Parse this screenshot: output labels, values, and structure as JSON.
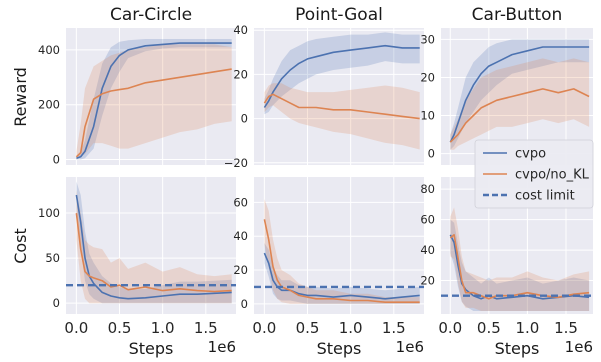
{
  "colors": {
    "cvpo": "#4c72b0",
    "no_kl": "#dd8452",
    "cost_limit": "#4c72b0",
    "panel_bg": "#eaeaf2",
    "grid": "#ffffff"
  },
  "row_labels": [
    "Reward",
    "Cost"
  ],
  "legend": {
    "placement": "right, between rows",
    "entries": [
      "cvpo",
      "cvpo/no_KL",
      "cost limit"
    ]
  },
  "chart_data": [
    {
      "type": "line",
      "title": "Car-Circle",
      "ylabel": "Reward",
      "xlabel": "",
      "x_sci": "",
      "x": [
        0,
        0.05,
        0.1,
        0.2,
        0.3,
        0.4,
        0.5,
        0.6,
        0.8,
        1.0,
        1.2,
        1.4,
        1.6,
        1.8
      ],
      "xlim": [
        -0.12,
        1.85
      ],
      "ylim": [
        -20,
        480
      ],
      "xticks": [],
      "yticks": [
        0,
        200,
        400
      ],
      "series": [
        {
          "name": "cvpo",
          "values": [
            5,
            10,
            30,
            120,
            260,
            340,
            380,
            400,
            415,
            420,
            425,
            425,
            425,
            425
          ],
          "band": [
            [
              0,
              10
            ],
            [
              0,
              30
            ],
            [
              5,
              70
            ],
            [
              40,
              220
            ],
            [
              160,
              350
            ],
            [
              260,
              410
            ],
            [
              320,
              430
            ],
            [
              370,
              435
            ],
            [
              395,
              440
            ],
            [
              405,
              440
            ],
            [
              410,
              440
            ],
            [
              410,
              440
            ],
            [
              410,
              440
            ],
            [
              410,
              440
            ]
          ]
        },
        {
          "name": "cvpo/no_KL",
          "values": [
            10,
            25,
            120,
            220,
            240,
            250,
            255,
            260,
            280,
            290,
            300,
            310,
            320,
            330
          ],
          "band": [
            [
              0,
              30
            ],
            [
              10,
              130
            ],
            [
              20,
              260
            ],
            [
              60,
              340
            ],
            [
              60,
              360
            ],
            [
              50,
              380
            ],
            [
              40,
              390
            ],
            [
              40,
              400
            ],
            [
              60,
              410
            ],
            [
              80,
              420
            ],
            [
              100,
              420
            ],
            [
              110,
              420
            ],
            [
              130,
              420
            ],
            [
              140,
              410
            ]
          ]
        }
      ]
    },
    {
      "type": "line",
      "title": "Point-Goal",
      "ylabel": "",
      "xlabel": "",
      "x_sci": "",
      "x": [
        0,
        0.05,
        0.1,
        0.2,
        0.3,
        0.4,
        0.5,
        0.6,
        0.8,
        1.0,
        1.2,
        1.4,
        1.6,
        1.8
      ],
      "xlim": [
        -0.12,
        1.85
      ],
      "ylim": [
        -21,
        41
      ],
      "xticks": [],
      "yticks": [
        -20,
        0,
        20,
        40
      ],
      "series": [
        {
          "name": "cvpo",
          "values": [
            5,
            8,
            12,
            18,
            22,
            25,
            27,
            28,
            30,
            31,
            32,
            33,
            32,
            32
          ],
          "band": [
            [
              2,
              9
            ],
            [
              3,
              13
            ],
            [
              6,
              18
            ],
            [
              10,
              26
            ],
            [
              13,
              31
            ],
            [
              16,
              33
            ],
            [
              18,
              35
            ],
            [
              20,
              36
            ],
            [
              22,
              37
            ],
            [
              23,
              38
            ],
            [
              24,
              38
            ],
            [
              26,
              39
            ],
            [
              25,
              38
            ],
            [
              25,
              38
            ]
          ]
        },
        {
          "name": "cvpo/no_KL",
          "values": [
            7,
            10,
            11,
            9,
            7,
            5,
            5,
            5,
            4,
            4,
            3,
            2,
            1,
            0
          ],
          "band": [
            [
              3,
              12
            ],
            [
              5,
              15
            ],
            [
              6,
              16
            ],
            [
              3,
              16
            ],
            [
              0,
              14
            ],
            [
              -2,
              13
            ],
            [
              -3,
              12
            ],
            [
              -4,
              12
            ],
            [
              -6,
              12
            ],
            [
              -7,
              13
            ],
            [
              -9,
              14
            ],
            [
              -11,
              15
            ],
            [
              -12,
              14
            ],
            [
              -14,
              12
            ]
          ]
        }
      ]
    },
    {
      "type": "line",
      "title": "Car-Button",
      "ylabel": "",
      "xlabel": "",
      "x_sci": "",
      "x": [
        0,
        0.05,
        0.1,
        0.2,
        0.3,
        0.4,
        0.5,
        0.6,
        0.8,
        1.0,
        1.2,
        1.4,
        1.6,
        1.8
      ],
      "xlim": [
        -0.12,
        1.85
      ],
      "ylim": [
        -3,
        33
      ],
      "xticks": [],
      "yticks": [
        0,
        10,
        20,
        30
      ],
      "series": [
        {
          "name": "cvpo",
          "values": [
            3,
            5,
            8,
            14,
            18,
            21,
            23,
            24,
            26,
            27,
            28,
            28,
            28,
            28
          ],
          "band": [
            [
              1,
              5
            ],
            [
              2,
              8
            ],
            [
              4,
              12
            ],
            [
              8,
              20
            ],
            [
              11,
              24
            ],
            [
              14,
              26
            ],
            [
              16,
              28
            ],
            [
              18,
              29
            ],
            [
              21,
              30
            ],
            [
              22,
              30
            ],
            [
              23,
              30
            ],
            [
              24,
              30
            ],
            [
              24,
              30
            ],
            [
              24,
              30
            ]
          ]
        },
        {
          "name": "cvpo/no_KL",
          "values": [
            3,
            4,
            5,
            8,
            10,
            12,
            13,
            14,
            15,
            16,
            17,
            16,
            17,
            15
          ],
          "band": [
            [
              1,
              5
            ],
            [
              1,
              7
            ],
            [
              2,
              9
            ],
            [
              3,
              14
            ],
            [
              4,
              17
            ],
            [
              5,
              20
            ],
            [
              6,
              21
            ],
            [
              7,
              22
            ],
            [
              7,
              23
            ],
            [
              8,
              24
            ],
            [
              9,
              25
            ],
            [
              8,
              24
            ],
            [
              9,
              25
            ],
            [
              7,
              24
            ]
          ]
        }
      ]
    },
    {
      "type": "line",
      "title": "",
      "ylabel": "Cost",
      "xlabel": "Steps",
      "x_sci": "1e6",
      "x": [
        0,
        0.05,
        0.1,
        0.15,
        0.2,
        0.3,
        0.4,
        0.5,
        0.6,
        0.8,
        1.0,
        1.2,
        1.4,
        1.6,
        1.8
      ],
      "xlim": [
        -0.12,
        1.85
      ],
      "ylim": [
        -12,
        140
      ],
      "xticks": [
        "0.0",
        "0.5",
        "1.0",
        "1.5"
      ],
      "yticks": [
        0,
        50,
        100
      ],
      "cost_limit": 20,
      "series": [
        {
          "name": "cvpo",
          "values": [
            120,
            90,
            50,
            30,
            22,
            12,
            8,
            6,
            5,
            6,
            8,
            10,
            10,
            11,
            12
          ],
          "band": [
            [
              95,
              135
            ],
            [
              60,
              120
            ],
            [
              25,
              80
            ],
            [
              10,
              55
            ],
            [
              5,
              45
            ],
            [
              0,
              30
            ],
            [
              0,
              22
            ],
            [
              0,
              18
            ],
            [
              0,
              15
            ],
            [
              0,
              16
            ],
            [
              0,
              20
            ],
            [
              0,
              24
            ],
            [
              0,
              24
            ],
            [
              0,
              25
            ],
            [
              0,
              26
            ]
          ]
        },
        {
          "name": "cvpo/no_KL",
          "values": [
            100,
            60,
            35,
            30,
            28,
            25,
            18,
            20,
            15,
            18,
            14,
            16,
            14,
            13,
            14
          ],
          "band": [
            [
              70,
              125
            ],
            [
              25,
              100
            ],
            [
              5,
              70
            ],
            [
              0,
              65
            ],
            [
              0,
              62
            ],
            [
              0,
              60
            ],
            [
              0,
              45
            ],
            [
              0,
              50
            ],
            [
              0,
              38
            ],
            [
              0,
              45
            ],
            [
              0,
              35
            ],
            [
              0,
              40
            ],
            [
              0,
              32
            ],
            [
              0,
              30
            ],
            [
              0,
              32
            ]
          ]
        }
      ]
    },
    {
      "type": "line",
      "title": "",
      "ylabel": "",
      "xlabel": "Steps",
      "x_sci": "1e6",
      "x": [
        0,
        0.05,
        0.1,
        0.15,
        0.2,
        0.3,
        0.4,
        0.5,
        0.6,
        0.8,
        1.0,
        1.2,
        1.4,
        1.6,
        1.8
      ],
      "xlim": [
        -0.12,
        1.85
      ],
      "ylim": [
        -6,
        75
      ],
      "xticks": [
        "0.0",
        "0.5",
        "1.0",
        "1.5"
      ],
      "yticks": [
        0,
        20,
        40,
        60
      ],
      "cost_limit": 10,
      "series": [
        {
          "name": "cvpo",
          "values": [
            30,
            24,
            14,
            10,
            8,
            8,
            6,
            5,
            5,
            4,
            5,
            4,
            3,
            4,
            5
          ],
          "band": [
            [
              24,
              36
            ],
            [
              16,
              32
            ],
            [
              6,
              22
            ],
            [
              3,
              17
            ],
            [
              2,
              14
            ],
            [
              2,
              14
            ],
            [
              1,
              11
            ],
            [
              0,
              10
            ],
            [
              0,
              10
            ],
            [
              0,
              9
            ],
            [
              0,
              10
            ],
            [
              0,
              9
            ],
            [
              0,
              8
            ],
            [
              0,
              9
            ],
            [
              0,
              10
            ]
          ]
        },
        {
          "name": "cvpo/no_KL",
          "values": [
            50,
            38,
            22,
            14,
            10,
            8,
            5,
            4,
            3,
            3,
            2,
            2,
            1,
            1,
            1
          ],
          "band": [
            [
              35,
              62
            ],
            [
              22,
              55
            ],
            [
              8,
              38
            ],
            [
              3,
              27
            ],
            [
              1,
              20
            ],
            [
              0,
              17
            ],
            [
              0,
              12
            ],
            [
              0,
              10
            ],
            [
              0,
              8
            ],
            [
              0,
              8
            ],
            [
              0,
              6
            ],
            [
              0,
              6
            ],
            [
              0,
              4
            ],
            [
              0,
              4
            ],
            [
              0,
              4
            ]
          ]
        }
      ]
    },
    {
      "type": "line",
      "title": "",
      "ylabel": "",
      "xlabel": "Steps",
      "x_sci": "1e6",
      "x": [
        0,
        0.05,
        0.1,
        0.15,
        0.2,
        0.3,
        0.4,
        0.5,
        0.6,
        0.8,
        1.0,
        1.2,
        1.4,
        1.6,
        1.8
      ],
      "xlim": [
        -0.12,
        1.85
      ],
      "ylim": [
        -2,
        88
      ],
      "xticks": [
        "0.0",
        "0.5",
        "1.0",
        "1.5"
      ],
      "yticks": [
        20,
        40,
        60,
        80
      ],
      "cost_limit": 10,
      "series": [
        {
          "name": "cvpo",
          "values": [
            50,
            45,
            30,
            18,
            14,
            10,
            8,
            10,
            8,
            9,
            10,
            8,
            9,
            10,
            9
          ],
          "band": [
            [
              38,
              60
            ],
            [
              30,
              58
            ],
            [
              16,
              44
            ],
            [
              6,
              32
            ],
            [
              3,
              26
            ],
            [
              0,
              22
            ],
            [
              0,
              18
            ],
            [
              0,
              22
            ],
            [
              0,
              18
            ],
            [
              0,
              20
            ],
            [
              0,
              22
            ],
            [
              0,
              18
            ],
            [
              0,
              20
            ],
            [
              0,
              22
            ],
            [
              0,
              20
            ]
          ]
        },
        {
          "name": "cvpo/no_KL",
          "values": [
            48,
            50,
            35,
            20,
            12,
            12,
            10,
            8,
            10,
            10,
            12,
            10,
            9,
            11,
            12
          ],
          "band": [
            [
              36,
              62
            ],
            [
              34,
              68
            ],
            [
              18,
              54
            ],
            [
              6,
              36
            ],
            [
              2,
              26
            ],
            [
              2,
              24
            ],
            [
              0,
              22
            ],
            [
              0,
              20
            ],
            [
              0,
              22
            ],
            [
              0,
              22
            ],
            [
              0,
              26
            ],
            [
              0,
              22
            ],
            [
              0,
              20
            ],
            [
              0,
              24
            ],
            [
              0,
              26
            ]
          ]
        }
      ]
    }
  ]
}
